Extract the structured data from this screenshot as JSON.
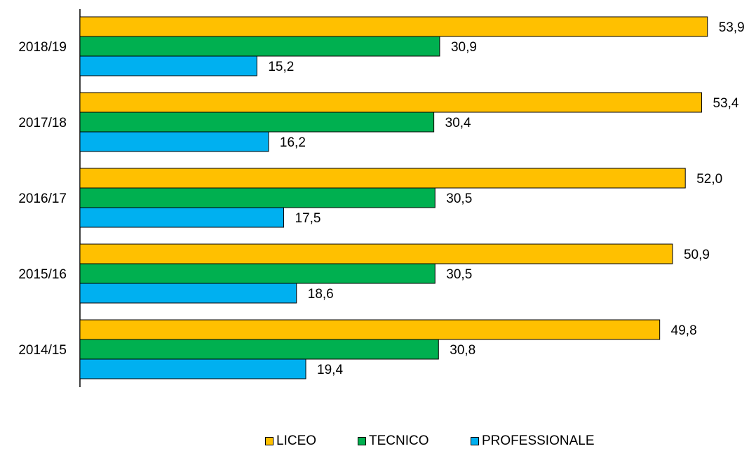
{
  "chart_data": {
    "type": "bar",
    "orientation": "horizontal",
    "categories": [
      "2018/19",
      "2017/18",
      "2016/17",
      "2015/16",
      "2014/15"
    ],
    "series": [
      {
        "name": "LICEO",
        "color": "#FFC000",
        "values": [
          53.9,
          53.4,
          52.0,
          50.9,
          49.8
        ],
        "labels": [
          "53,9",
          "53,4",
          "52,0",
          "50,9",
          "49,8"
        ]
      },
      {
        "name": "TECNICO",
        "color": "#00B050",
        "values": [
          30.9,
          30.4,
          30.5,
          30.5,
          30.8
        ],
        "labels": [
          "30,9",
          "30,4",
          "30,5",
          "30,5",
          "30,8"
        ]
      },
      {
        "name": "PROFESSIONALE",
        "color": "#00B0F0",
        "values": [
          15.2,
          16.2,
          17.5,
          18.6,
          19.4
        ],
        "labels": [
          "15,2",
          "16,2",
          "17,5",
          "18,6",
          "19,4"
        ]
      }
    ],
    "xlim": [
      0,
      54
    ],
    "grid": false,
    "legend_position": "bottom"
  }
}
